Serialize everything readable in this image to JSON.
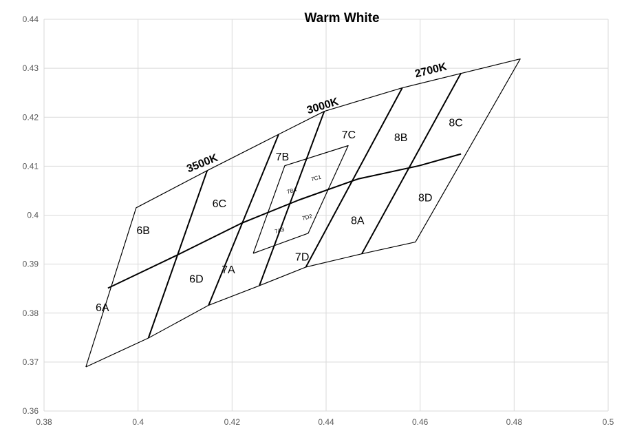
{
  "chart_data": {
    "type": "scatter",
    "title": "Warm White",
    "xlabel": "",
    "ylabel": "",
    "xlim": [
      0.38,
      0.5
    ],
    "ylim": [
      0.36,
      0.44
    ],
    "x_ticks": [
      "0.38",
      "0.4",
      "0.42",
      "0.44",
      "0.46",
      "0.48",
      "0.5"
    ],
    "y_ticks": [
      "0.36",
      "0.37",
      "0.38",
      "0.39",
      "0.4",
      "0.41",
      "0.42",
      "0.43",
      "0.44"
    ],
    "x_tick_values": [
      0.38,
      0.4,
      0.42,
      0.44,
      0.46,
      0.48,
      0.5
    ],
    "y_tick_values": [
      0.36,
      0.37,
      0.38,
      0.39,
      0.4,
      0.41,
      0.42,
      0.43,
      0.44
    ],
    "grid": true,
    "line_color": "#000000",
    "grid_color": "#d9d9d9",
    "lines": [
      {
        "name": "outline",
        "width": 1.2,
        "points": [
          [
            0.3889,
            0.369
          ],
          [
            0.4022,
            0.3749
          ],
          [
            0.415,
            0.3816
          ],
          [
            0.4258,
            0.3856
          ],
          [
            0.4357,
            0.3894
          ],
          [
            0.4476,
            0.3921
          ],
          [
            0.459,
            0.3945
          ],
          [
            0.4813,
            0.4319
          ],
          [
            0.4562,
            0.426
          ],
          [
            0.4396,
            0.4212
          ],
          [
            0.4299,
            0.4165
          ],
          [
            0.4147,
            0.4091
          ],
          [
            0.3996,
            0.4015
          ],
          [
            0.3889,
            0.369
          ]
        ]
      },
      {
        "name": "mid-curve",
        "width": 2,
        "points": [
          [
            0.3936,
            0.3851
          ],
          [
            0.4078,
            0.3916
          ],
          [
            0.4221,
            0.3984
          ],
          [
            0.4342,
            0.4031
          ],
          [
            0.4468,
            0.4074
          ],
          [
            0.4598,
            0.4101
          ],
          [
            0.4687,
            0.4125
          ]
        ]
      },
      {
        "name": "div-1",
        "width": 2,
        "points": [
          [
            0.4022,
            0.3749
          ],
          [
            0.4147,
            0.4091
          ]
        ]
      },
      {
        "name": "div-2",
        "width": 2,
        "points": [
          [
            0.415,
            0.3816
          ],
          [
            0.4299,
            0.4165
          ]
        ]
      },
      {
        "name": "div-3",
        "width": 2,
        "points": [
          [
            0.4258,
            0.3856
          ],
          [
            0.4396,
            0.4212
          ]
        ]
      },
      {
        "name": "div-4",
        "width": 2,
        "points": [
          [
            0.4357,
            0.3894
          ],
          [
            0.4562,
            0.426
          ]
        ]
      },
      {
        "name": "div-5",
        "width": 2,
        "points": [
          [
            0.4476,
            0.3921
          ],
          [
            0.4687,
            0.429
          ]
        ]
      },
      {
        "name": "inner-quad",
        "width": 1.2,
        "points": [
          [
            0.4245,
            0.3922
          ],
          [
            0.4362,
            0.3963
          ],
          [
            0.4447,
            0.4142
          ],
          [
            0.4312,
            0.4101
          ],
          [
            0.4245,
            0.3922
          ]
        ]
      }
    ],
    "labels": [
      {
        "text": "6A",
        "x": 0.3924,
        "y": 0.381,
        "style": "bin"
      },
      {
        "text": "6B",
        "x": 0.4011,
        "y": 0.3967,
        "style": "bin"
      },
      {
        "text": "6C",
        "x": 0.4173,
        "y": 0.4022,
        "style": "bin"
      },
      {
        "text": "6D",
        "x": 0.4124,
        "y": 0.3868,
        "style": "bin"
      },
      {
        "text": "7A",
        "x": 0.4192,
        "y": 0.3887,
        "style": "bin"
      },
      {
        "text": "7B",
        "x": 0.4307,
        "y": 0.4118,
        "style": "bin"
      },
      {
        "text": "7C",
        "x": 0.4448,
        "y": 0.4163,
        "style": "bin"
      },
      {
        "text": "7D",
        "x": 0.4349,
        "y": 0.3913,
        "style": "bin"
      },
      {
        "text": "8A",
        "x": 0.4467,
        "y": 0.3988,
        "style": "bin"
      },
      {
        "text": "8B",
        "x": 0.4559,
        "y": 0.4157,
        "style": "bin"
      },
      {
        "text": "8C",
        "x": 0.4676,
        "y": 0.4187,
        "style": "bin"
      },
      {
        "text": "8D",
        "x": 0.4611,
        "y": 0.4034,
        "style": "bin"
      },
      {
        "text": "7B4",
        "x": 0.4327,
        "y": 0.4049,
        "style": "small"
      },
      {
        "text": "7C1",
        "x": 0.4379,
        "y": 0.4075,
        "style": "small"
      },
      {
        "text": "7A3",
        "x": 0.4301,
        "y": 0.3968,
        "style": "small"
      },
      {
        "text": "7D2",
        "x": 0.436,
        "y": 0.3995,
        "style": "small"
      },
      {
        "text": "3500K",
        "x": 0.4137,
        "y": 0.4105,
        "style": "cct",
        "rotate": -22
      },
      {
        "text": "3000K",
        "x": 0.4393,
        "y": 0.4222,
        "style": "cct",
        "rotate": -17
      },
      {
        "text": "2700K",
        "x": 0.4623,
        "y": 0.4295,
        "style": "cct",
        "rotate": -14
      }
    ]
  }
}
